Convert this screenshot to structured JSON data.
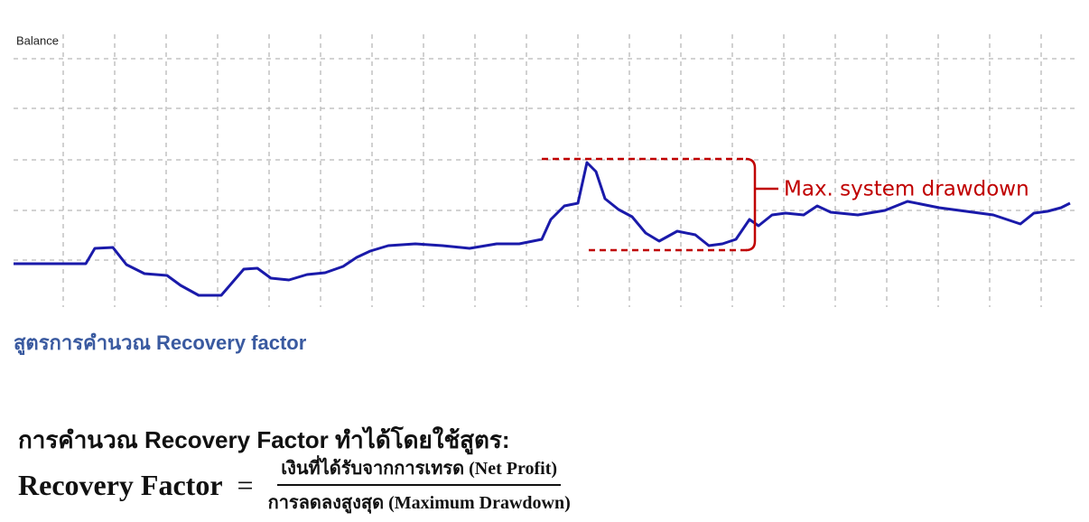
{
  "chart": {
    "label": "Balance",
    "annotation": "Max. system drawdown"
  },
  "heading": "สูตรการคำนวณ Recovery factor",
  "intro": "การคำนวณ Recovery Factor ทำได้โดยใช้สูตร:",
  "formula": {
    "lhs": "Recovery Factor",
    "equals": "=",
    "numerator": "เงินที่ได้รับจากการเทรด (Net Profit)",
    "denominator": "การลดลงสูงสุด (Maximum Drawdown)"
  }
}
